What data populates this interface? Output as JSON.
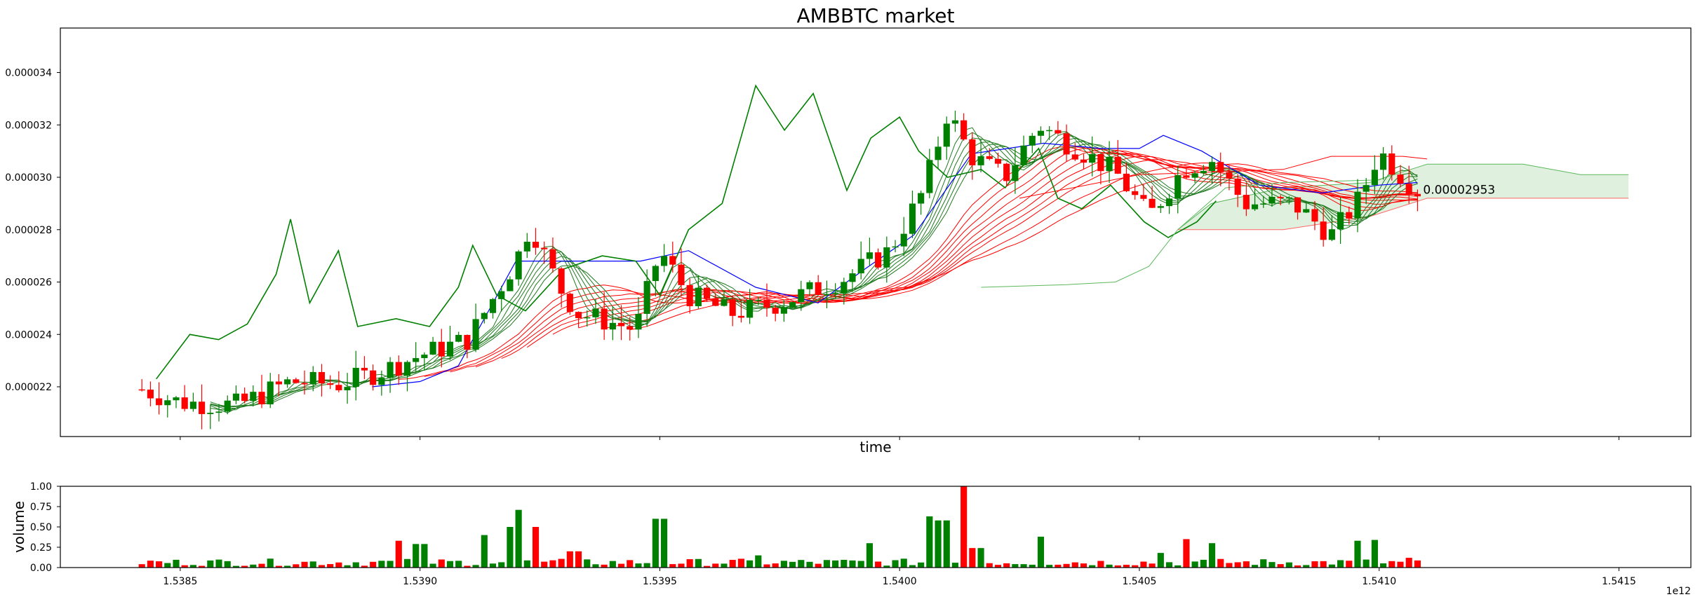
{
  "chart_data": [
    {
      "type": "candlestick",
      "title": "AMBBTC market",
      "xlabel": "time",
      "ylabel": "",
      "xlim": [
        1538250000000,
        1541650000000
      ],
      "ylim": [
        2.01e-05,
        3.57e-05
      ],
      "x_ticks": [
        1538500000000,
        1539000000000,
        1539500000000,
        1540000000000,
        1540500000000,
        1541000000000,
        1541500000000
      ],
      "x_tick_labels": [
        "1.5385",
        "1.5390",
        "1.5395",
        "1.5400",
        "1.5405",
        "1.5410",
        "1.5415"
      ],
      "x_offset_label": "1e12",
      "y_ticks": [
        2.2e-05,
        2.4e-05,
        2.6e-05,
        2.8e-05,
        3e-05,
        3.2e-05,
        3.4e-05
      ],
      "y_tick_labels": [
        "0.000022",
        "0.000024",
        "0.000026",
        "0.000028",
        "0.000030",
        "0.000032",
        "0.000034"
      ],
      "last_price_label": "0.00002953",
      "colors": {
        "up": "#008000",
        "down": "#ff0000",
        "ma_fast": "#1f7a1f",
        "ma_slow": "#ff0000",
        "line_blue": "#0000ff",
        "line_green": "#008000",
        "cloud": "#dff0df"
      },
      "price_path": [
        [
          1538420000000,
          2.19e-05
        ],
        [
          1538500000000,
          2.14e-05
        ],
        [
          1538620000000,
          2.13e-05
        ],
        [
          1538730000000,
          2.22e-05
        ],
        [
          1538830000000,
          2.21e-05
        ],
        [
          1538920000000,
          2.26e-05
        ],
        [
          1539000000000,
          2.32e-05
        ],
        [
          1539100000000,
          2.38e-05
        ],
        [
          1539200000000,
          2.68e-05
        ],
        [
          1539230000000,
          2.82e-05
        ],
        [
          1539290000000,
          2.58e-05
        ],
        [
          1539330000000,
          2.48e-05
        ],
        [
          1539450000000,
          2.42e-05
        ],
        [
          1539500000000,
          2.72e-05
        ],
        [
          1539560000000,
          2.55e-05
        ],
        [
          1539650000000,
          2.48e-05
        ],
        [
          1539750000000,
          2.52e-05
        ],
        [
          1539880000000,
          2.61e-05
        ],
        [
          1539980000000,
          2.72e-05
        ],
        [
          1540050000000,
          2.95e-05
        ],
        [
          1540100000000,
          3.25e-05
        ],
        [
          1540150000000,
          3.08e-05
        ],
        [
          1540220000000,
          3e-05
        ],
        [
          1540290000000,
          3.2e-05
        ],
        [
          1540350000000,
          3.13e-05
        ],
        [
          1540450000000,
          3.02e-05
        ],
        [
          1540520000000,
          2.85e-05
        ],
        [
          1540590000000,
          3.03e-05
        ],
        [
          1540650000000,
          3.07e-05
        ],
        [
          1540720000000,
          2.9e-05
        ],
        [
          1540820000000,
          2.9e-05
        ],
        [
          1540900000000,
          2.78e-05
        ],
        [
          1540960000000,
          2.92e-05
        ],
        [
          1541000000000,
          3.1e-05
        ],
        [
          1541040000000,
          3.02e-05
        ],
        [
          1541080000000,
          2.95e-05
        ]
      ],
      "candle_count": 150,
      "line_green": [
        [
          1538450000000,
          2.23e-05
        ],
        [
          1538520000000,
          2.4e-05
        ],
        [
          1538580000000,
          2.38e-05
        ],
        [
          1538640000000,
          2.44e-05
        ],
        [
          1538700000000,
          2.63e-05
        ],
        [
          1538730000000,
          2.84e-05
        ],
        [
          1538770000000,
          2.52e-05
        ],
        [
          1538830000000,
          2.72e-05
        ],
        [
          1538870000000,
          2.43e-05
        ],
        [
          1538950000000,
          2.46e-05
        ],
        [
          1539020000000,
          2.43e-05
        ],
        [
          1539080000000,
          2.58e-05
        ],
        [
          1539110000000,
          2.74e-05
        ],
        [
          1539160000000,
          2.55e-05
        ],
        [
          1539220000000,
          2.49e-05
        ],
        [
          1539300000000,
          2.65e-05
        ],
        [
          1539380000000,
          2.7e-05
        ],
        [
          1539450000000,
          2.68e-05
        ],
        [
          1539500000000,
          2.55e-05
        ],
        [
          1539560000000,
          2.8e-05
        ],
        [
          1539630000000,
          2.9e-05
        ],
        [
          1539700000000,
          3.35e-05
        ],
        [
          1539760000000,
          3.18e-05
        ],
        [
          1539820000000,
          3.32e-05
        ],
        [
          1539890000000,
          2.95e-05
        ],
        [
          1539940000000,
          3.15e-05
        ],
        [
          1540000000000,
          3.23e-05
        ],
        [
          1540040000000,
          3.1e-05
        ],
        [
          1540100000000,
          3e-05
        ],
        [
          1540170000000,
          3.03e-05
        ],
        [
          1540220000000,
          2.96e-05
        ],
        [
          1540250000000,
          3.03e-05
        ],
        [
          1540290000000,
          3.11e-05
        ],
        [
          1540330000000,
          2.92e-05
        ],
        [
          1540380000000,
          2.88e-05
        ],
        [
          1540440000000,
          2.97e-05
        ],
        [
          1540510000000,
          2.83e-05
        ],
        [
          1540560000000,
          2.77e-05
        ],
        [
          1540620000000,
          2.83e-05
        ],
        [
          1540660000000,
          2.91e-05
        ]
      ],
      "line_green_light": [
        [
          1540170000000,
          2.58e-05
        ],
        [
          1540350000000,
          2.59e-05
        ],
        [
          1540450000000,
          2.6e-05
        ],
        [
          1540520000000,
          2.66e-05
        ],
        [
          1540580000000,
          2.8e-05
        ],
        [
          1540680000000,
          2.96e-05
        ],
        [
          1540800000000,
          2.98e-05
        ],
        [
          1541000000000,
          2.99e-05
        ],
        [
          1541050000000,
          3.03e-05
        ]
      ],
      "line_blue": [
        [
          1538900000000,
          2.2e-05
        ],
        [
          1539000000000,
          2.22e-05
        ],
        [
          1539080000000,
          2.28e-05
        ],
        [
          1539200000000,
          2.68e-05
        ],
        [
          1539300000000,
          2.68e-05
        ],
        [
          1539460000000,
          2.68e-05
        ],
        [
          1539560000000,
          2.72e-05
        ],
        [
          1539700000000,
          2.58e-05
        ],
        [
          1539830000000,
          2.52e-05
        ],
        [
          1539920000000,
          2.64e-05
        ],
        [
          1540030000000,
          2.78e-05
        ],
        [
          1540150000000,
          3.09e-05
        ],
        [
          1540300000000,
          3.13e-05
        ],
        [
          1540420000000,
          3.11e-05
        ],
        [
          1540500000000,
          3.11e-05
        ],
        [
          1540550000000,
          3.16e-05
        ],
        [
          1540630000000,
          3.1e-05
        ],
        [
          1540750000000,
          2.97e-05
        ],
        [
          1540880000000,
          2.94e-05
        ],
        [
          1541000000000,
          2.97e-05
        ],
        [
          1541080000000,
          2.98e-05
        ]
      ],
      "ichimoku_cloud_top": [
        [
          1540580000000,
          2.8e-05
        ],
        [
          1540650000000,
          2.9e-05
        ],
        [
          1540800000000,
          2.96e-05
        ],
        [
          1540980000000,
          2.98e-05
        ],
        [
          1541100000000,
          3.05e-05
        ],
        [
          1541300000000,
          3.05e-05
        ],
        [
          1541420000000,
          3.01e-05
        ],
        [
          1541520000000,
          3.01e-05
        ]
      ],
      "ichimoku_cloud_bottom": [
        [
          1540580000000,
          2.8e-05
        ],
        [
          1540800000000,
          2.8e-05
        ],
        [
          1540980000000,
          2.85e-05
        ],
        [
          1541100000000,
          2.92e-05
        ],
        [
          1541520000000,
          2.92e-05
        ]
      ],
      "red_upper_band": [
        [
          1540250000000,
          2.92e-05
        ],
        [
          1540500000000,
          3.01e-05
        ],
        [
          1540800000000,
          3.03e-05
        ],
        [
          1540900000000,
          3.08e-05
        ],
        [
          1541050000000,
          3.08e-05
        ],
        [
          1541100000000,
          3.07e-05
        ]
      ]
    },
    {
      "type": "bar",
      "title": "",
      "xlabel": "",
      "ylabel": "volume",
      "ylim": [
        0,
        1
      ],
      "y_ticks": [
        0,
        0.25,
        0.5,
        0.75,
        1.0
      ],
      "y_tick_labels": [
        "0.00",
        "0.25",
        "0.50",
        "0.75",
        "1.00"
      ],
      "bar_count": 150,
      "spikes": [
        [
          1538950000000,
          0.33
        ],
        [
          1539000000000,
          0.29
        ],
        [
          1539140000000,
          0.4
        ],
        [
          1539190000000,
          0.5
        ],
        [
          1539210000000,
          0.71
        ],
        [
          1539240000000,
          0.5
        ],
        [
          1539320000000,
          0.2
        ],
        [
          1539500000000,
          0.6
        ],
        [
          1539700000000,
          0.15
        ],
        [
          1539940000000,
          0.3
        ],
        [
          1540070000000,
          0.63
        ],
        [
          1540090000000,
          0.58
        ],
        [
          1540130000000,
          1.0
        ],
        [
          1540160000000,
          0.24
        ],
        [
          1540300000000,
          0.38
        ],
        [
          1540550000000,
          0.18
        ],
        [
          1540600000000,
          0.35
        ],
        [
          1540650000000,
          0.3
        ],
        [
          1540950000000,
          0.33
        ],
        [
          1540990000000,
          0.34
        ],
        [
          1541060000000,
          0.12
        ]
      ]
    }
  ]
}
